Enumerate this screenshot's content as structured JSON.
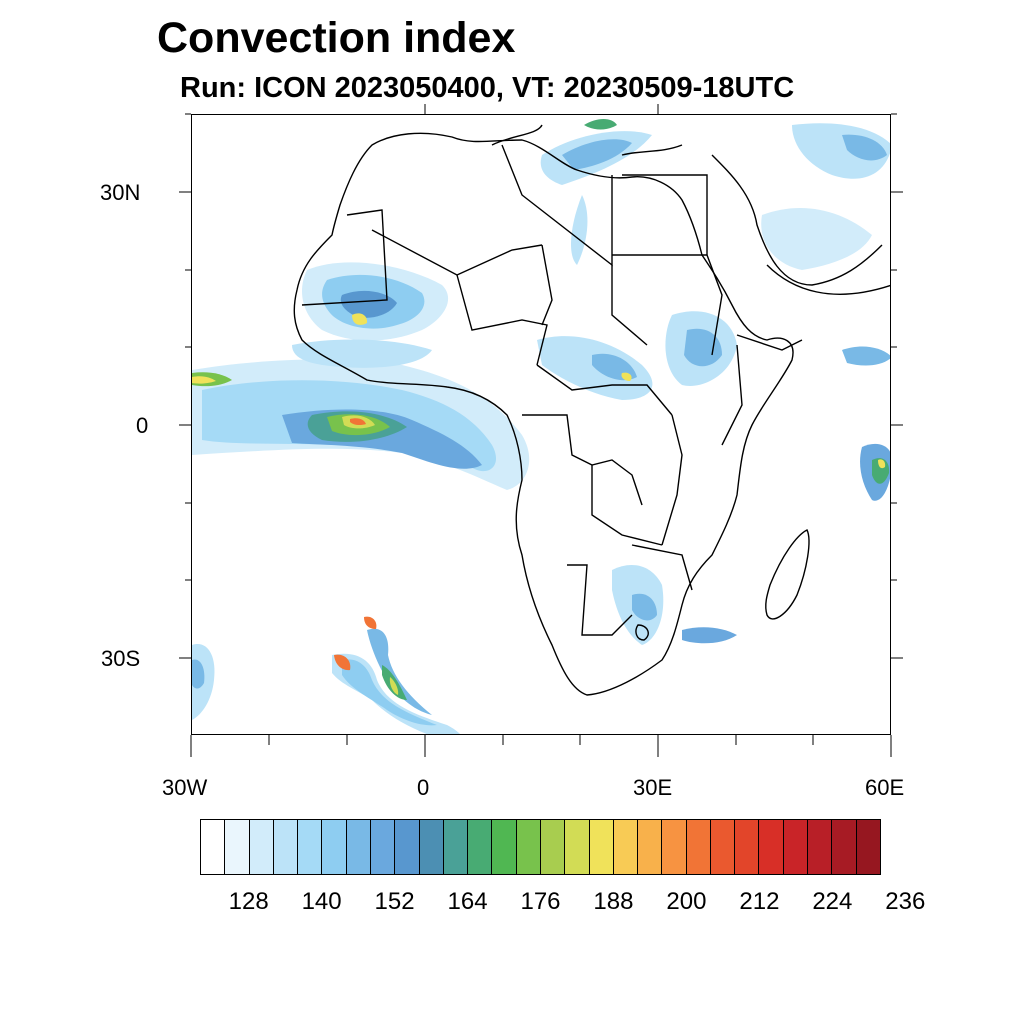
{
  "title": "Convection index",
  "subtitle": "Run: ICON 2023050400,  VT: 20230509-18UTC",
  "map": {
    "lat_labels": [
      "30N",
      "0",
      "30S"
    ],
    "lon_labels": [
      "30W",
      "0",
      "30E",
      "60E"
    ],
    "extent": {
      "lon": [
        -30,
        60
      ],
      "lat": [
        -40,
        40
      ]
    }
  },
  "colorbar": {
    "labels": [
      "128",
      "140",
      "152",
      "164",
      "176",
      "188",
      "200",
      "212",
      "224",
      "236"
    ],
    "colors": [
      "#ffffff",
      "#eaf6fd",
      "#d2ecfa",
      "#bce3f8",
      "#a5daf6",
      "#8ecdf1",
      "#79b9e6",
      "#6aa8de",
      "#5897cf",
      "#4c8fb3",
      "#4aa197",
      "#48ab73",
      "#50b752",
      "#78c24c",
      "#a8cd4f",
      "#d2dc55",
      "#f0e25a",
      "#f8cb55",
      "#f8b14b",
      "#f79341",
      "#f17436",
      "#ea592f",
      "#e2452a",
      "#d82f27",
      "#c92428",
      "#b81f27",
      "#a71b24",
      "#961720"
    ]
  }
}
